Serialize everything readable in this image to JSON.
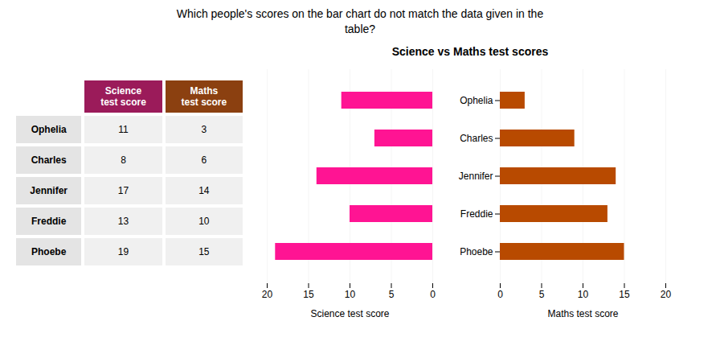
{
  "chart_data": [
    {
      "type": "table",
      "title": "Which people's scores on the bar chart do not match the data given in the\ntable?",
      "categories": [
        "Ophelia",
        "Charles",
        "Jennifer",
        "Freddie",
        "Phoebe"
      ],
      "series": [
        {
          "name": "Science\ntest score",
          "color": "#9B1B5A",
          "values": [
            11,
            8,
            17,
            13,
            19
          ]
        },
        {
          "name": "Maths\ntest score",
          "color": "#8B4010",
          "values": [
            3,
            6,
            14,
            10,
            15
          ]
        }
      ]
    },
    {
      "type": "bar",
      "orientation": "horizontal",
      "title": "Science vs Maths test scores",
      "categories": [
        "Ophelia",
        "Charles",
        "Jennifer",
        "Freddie",
        "Phoebe"
      ],
      "values": [
        11,
        7,
        14,
        10,
        19
      ],
      "color": "#FF1493",
      "x_label": "Science test score",
      "xlim": [
        20,
        0
      ],
      "xticks": [
        20,
        15,
        10,
        5,
        0
      ],
      "grid": true,
      "tick_labels": "x"
    },
    {
      "type": "bar",
      "orientation": "horizontal",
      "categories": [
        "Ophelia",
        "Charles",
        "Jennifer",
        "Freddie",
        "Phoebe"
      ],
      "values": [
        3,
        9,
        14,
        13,
        15
      ],
      "color": "#B84A00",
      "x_label": "Maths test score",
      "xlim": [
        0,
        20
      ],
      "xticks": [
        0,
        5,
        10,
        15,
        20
      ],
      "grid": true
    }
  ]
}
